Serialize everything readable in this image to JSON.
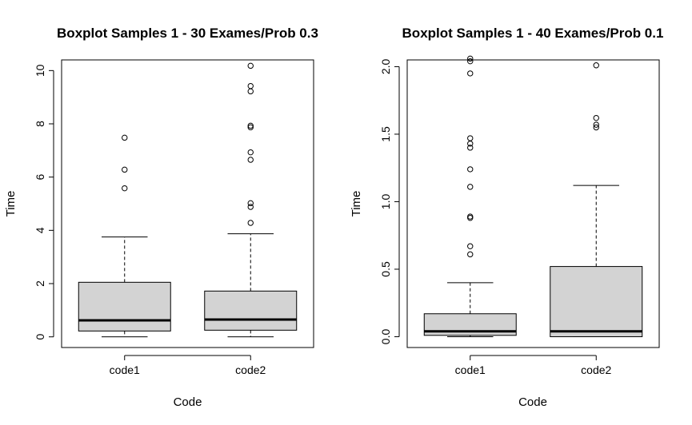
{
  "chart_data": [
    {
      "type": "boxplot",
      "title": "Boxplot Samples 1 - 30 Exames/Prob 0.3",
      "xlabel": "Code",
      "ylabel": "Time",
      "ylim": [
        -0.4,
        10.4
      ],
      "yticks": [
        "0",
        "2",
        "4",
        "6",
        "8",
        "10"
      ],
      "categories": [
        "code1",
        "code2"
      ],
      "boxes": [
        {
          "name": "code1",
          "min": 0.0,
          "q1": 0.22,
          "median": 0.62,
          "q3": 2.05,
          "max": 3.75,
          "outliers": [
            5.58,
            6.28,
            7.48
          ]
        },
        {
          "name": "code2",
          "min": 0.0,
          "q1": 0.25,
          "median": 0.65,
          "q3": 1.72,
          "max": 3.87,
          "outliers": [
            4.28,
            4.88,
            5.02,
            6.65,
            6.93,
            7.87,
            7.93,
            9.22,
            9.42,
            10.18
          ]
        }
      ]
    },
    {
      "type": "boxplot",
      "title": "Boxplot Samples 1 - 40 Exames/Prob 0.1",
      "xlabel": "Code",
      "ylabel": "Time",
      "ylim": [
        -0.08,
        2.05
      ],
      "yticks": [
        "0.0",
        "0.5",
        "1.0",
        "1.5",
        "2.0"
      ],
      "categories": [
        "code1",
        "code2"
      ],
      "boxes": [
        {
          "name": "code1",
          "min": 0.0,
          "q1": 0.01,
          "median": 0.04,
          "q3": 0.17,
          "max": 0.4,
          "outliers": [
            0.61,
            0.67,
            0.88,
            0.89,
            1.11,
            1.24,
            1.4,
            1.43,
            1.47,
            1.95,
            2.04,
            2.06
          ]
        },
        {
          "name": "code2",
          "min": 0.0,
          "q1": 0.0,
          "median": 0.04,
          "q3": 0.52,
          "max": 1.12,
          "outliers": [
            1.55,
            1.57,
            1.62,
            2.01
          ]
        }
      ]
    }
  ]
}
